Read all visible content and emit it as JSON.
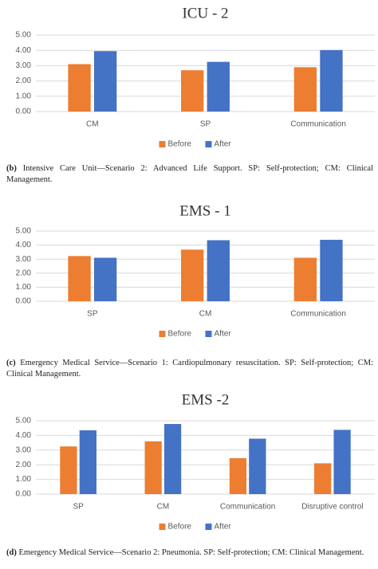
{
  "chart_data": [
    {
      "type": "bar",
      "title": "ICU - 2",
      "categories": [
        "CM",
        "SP",
        "Communication"
      ],
      "series": [
        {
          "name": "Before",
          "color": "#ed7d31",
          "values": [
            3.1,
            2.7,
            2.9
          ]
        },
        {
          "name": "After",
          "color": "#4472c4",
          "values": [
            3.95,
            3.25,
            4.02
          ]
        }
      ],
      "ylim": [
        0,
        5
      ],
      "yticks": [
        {
          "value": 0,
          "label": "0.00"
        },
        {
          "value": 1,
          "label": "1.00"
        },
        {
          "value": 2,
          "label": "2.00"
        },
        {
          "value": 3,
          "label": "3.00"
        },
        {
          "value": 4,
          "label": "4.00"
        },
        {
          "value": 5,
          "label": "5.00"
        }
      ],
      "grid": true,
      "legend": "bottom",
      "caption_label": "(b)",
      "caption": "Intensive Care Unit—Scenario 2: Advanced Life Support. SP: Self-protection; CM: Clinical Management."
    },
    {
      "type": "bar",
      "title": "EMS - 1",
      "categories": [
        "SP",
        "CM",
        "Communication"
      ],
      "series": [
        {
          "name": "Before",
          "color": "#ed7d31",
          "values": [
            3.22,
            3.68,
            3.1
          ]
        },
        {
          "name": "After",
          "color": "#4472c4",
          "values": [
            3.1,
            4.35,
            4.38
          ]
        }
      ],
      "ylim": [
        0,
        5
      ],
      "yticks": [
        {
          "value": 0,
          "label": "0.00"
        },
        {
          "value": 1,
          "label": "1.00"
        },
        {
          "value": 2,
          "label": "2.00"
        },
        {
          "value": 3,
          "label": "3.00"
        },
        {
          "value": 4,
          "label": "4.00"
        },
        {
          "value": 5,
          "label": "5.00"
        }
      ],
      "grid": true,
      "legend": "bottom",
      "caption_label": "(c)",
      "caption": "Emergency Medical Service—Scenario 1: Cardiopulmonary resuscitation. SP: Self-protection; CM: Clinical Management."
    },
    {
      "type": "bar",
      "title": "EMS -2",
      "categories": [
        "SP",
        "CM",
        "Communication",
        "Disruptive control"
      ],
      "series": [
        {
          "name": "Before",
          "color": "#ed7d31",
          "values": [
            3.25,
            3.6,
            2.45,
            2.1
          ]
        },
        {
          "name": "After",
          "color": "#4472c4",
          "values": [
            4.35,
            4.78,
            3.78,
            4.38
          ]
        }
      ],
      "ylim": [
        0,
        5
      ],
      "yticks": [
        {
          "value": 0,
          "label": "0.00"
        },
        {
          "value": 1,
          "label": "1.00"
        },
        {
          "value": 2,
          "label": "2.00"
        },
        {
          "value": 3,
          "label": "3.00"
        },
        {
          "value": 4,
          "label": "4.00"
        },
        {
          "value": 5,
          "label": "5.00"
        }
      ],
      "grid": true,
      "legend": "bottom",
      "caption_label": "(d)",
      "caption": "Emergency Medical Service—Scenario 2: Pneumonia. SP: Self-protection; CM: Clinical Management."
    }
  ]
}
